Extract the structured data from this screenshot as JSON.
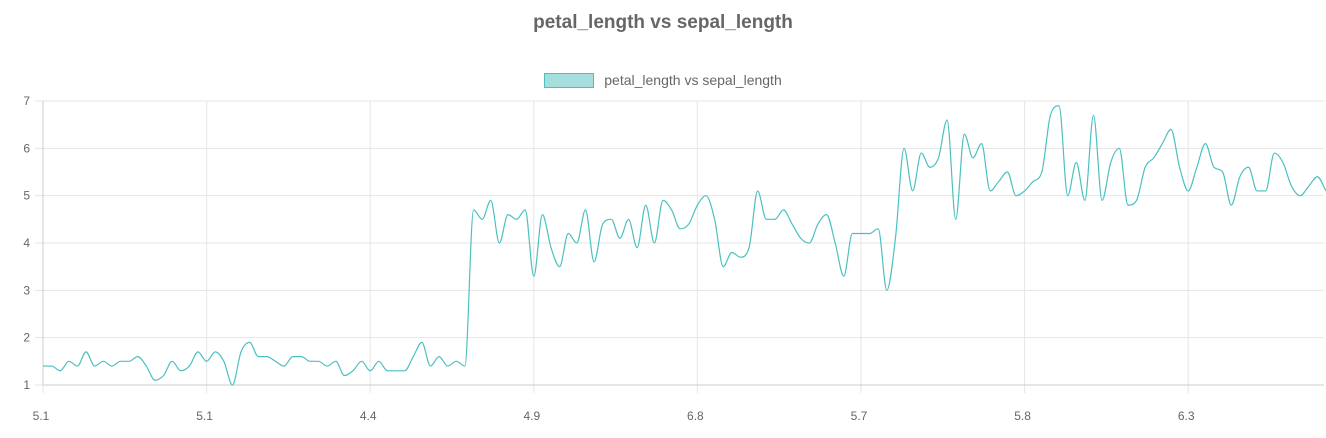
{
  "chart_data": {
    "type": "line",
    "title": "petal_length vs sepal_length",
    "legend": {
      "position": "top",
      "entries": [
        "petal_length vs sepal_length"
      ]
    },
    "series": [
      {
        "name": "petal_length vs sepal_length",
        "color": "#4bc0c0",
        "fill": "#a6dede",
        "values": [
          1.4,
          1.4,
          1.3,
          1.5,
          1.4,
          1.7,
          1.4,
          1.5,
          1.4,
          1.5,
          1.5,
          1.6,
          1.4,
          1.1,
          1.2,
          1.5,
          1.3,
          1.4,
          1.7,
          1.5,
          1.7,
          1.5,
          1.0,
          1.7,
          1.9,
          1.6,
          1.6,
          1.5,
          1.4,
          1.6,
          1.6,
          1.5,
          1.5,
          1.4,
          1.5,
          1.2,
          1.3,
          1.5,
          1.3,
          1.5,
          1.3,
          1.3,
          1.3,
          1.6,
          1.9,
          1.4,
          1.6,
          1.4,
          1.5,
          1.4,
          4.7,
          4.5,
          4.9,
          4.0,
          4.6,
          4.5,
          4.7,
          3.3,
          4.6,
          3.9,
          3.5,
          4.2,
          4.0,
          4.7,
          3.6,
          4.4,
          4.5,
          4.1,
          4.5,
          3.9,
          4.8,
          4.0,
          4.9,
          4.7,
          4.3,
          4.4,
          4.8,
          5.0,
          4.5,
          3.5,
          3.8,
          3.7,
          3.9,
          5.1,
          4.5,
          4.5,
          4.7,
          4.4,
          4.1,
          4.0,
          4.4,
          4.6,
          4.0,
          3.3,
          4.2,
          4.2,
          4.2,
          4.3,
          3.0,
          4.1,
          6.0,
          5.1,
          5.9,
          5.6,
          5.8,
          6.6,
          4.5,
          6.3,
          5.8,
          6.1,
          5.1,
          5.3,
          5.5,
          5.0,
          5.1,
          5.3,
          5.5,
          6.7,
          6.9,
          5.0,
          5.7,
          4.9,
          6.7,
          4.9,
          5.7,
          6.0,
          4.8,
          4.9,
          5.6,
          5.8,
          6.1,
          6.4,
          5.6,
          5.1,
          5.6,
          6.1,
          5.6,
          5.5,
          4.8,
          5.4,
          5.6,
          5.1,
          5.1,
          5.9,
          5.7,
          5.2,
          5.0,
          5.2,
          5.4,
          5.1
        ]
      }
    ],
    "tick_labels_x": [
      "5.1",
      "5.1",
      "4.4",
      "4.9",
      "6.8",
      "5.7",
      "5.8",
      "6.3"
    ],
    "xlabel": "",
    "ylabel": "",
    "ylim": [
      1,
      7
    ],
    "yticks": [
      1,
      2,
      3,
      4,
      5,
      6,
      7
    ],
    "grid": true
  }
}
